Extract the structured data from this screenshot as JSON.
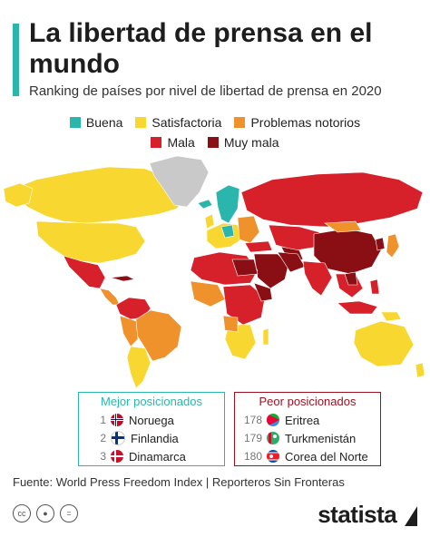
{
  "title": "La libertad de prensa en el mundo",
  "subtitle": "Ranking de países por nivel de libertad de prensa en 2020",
  "legend": {
    "row1": [
      {
        "label": "Buena",
        "color": "#2bb6ad"
      },
      {
        "label": "Satisfactoria",
        "color": "#f7d730"
      },
      {
        "label": "Problemas notorios",
        "color": "#f0922c"
      }
    ],
    "row2": [
      {
        "label": "Mala",
        "color": "#d6202a"
      },
      {
        "label": "Muy mala",
        "color": "#8a0f14"
      }
    ]
  },
  "colors": {
    "nodata": "#c9c9c9",
    "buena": "#2bb6ad",
    "satisfactoria": "#f7d730",
    "problemas": "#f0922c",
    "mala": "#d6202a",
    "muy_mala": "#8a0f14",
    "accent": "#2bb6ad"
  },
  "best": {
    "title": "Mejor posicionados",
    "items": [
      {
        "rank": "1",
        "country": "Noruega",
        "flag": "norway-flag-icon"
      },
      {
        "rank": "2",
        "country": "Finlandia",
        "flag": "finland-flag-icon"
      },
      {
        "rank": "3",
        "country": "Dinamarca",
        "flag": "denmark-flag-icon"
      }
    ]
  },
  "worst": {
    "title": "Peor posicionados",
    "items": [
      {
        "rank": "178",
        "country": "Eritrea",
        "flag": "eritrea-flag-icon"
      },
      {
        "rank": "179",
        "country": "Turkmenistán",
        "flag": "turkmenistan-flag-icon"
      },
      {
        "rank": "180",
        "country": "Corea del Norte",
        "flag": "north-korea-flag-icon"
      }
    ]
  },
  "source": "Fuente: World Press Freedom Index | Reporteros Sin Fronteras",
  "license_icons": [
    "cc-icon",
    "by-icon",
    "nd-icon"
  ],
  "brand": "statista"
}
